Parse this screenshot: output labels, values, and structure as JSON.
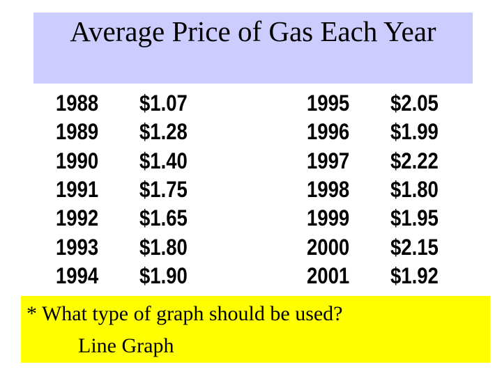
{
  "title": "Average Price of Gas Each Year",
  "table": {
    "rows": [
      [
        "1988",
        "$1.07",
        "1995",
        "$2.05"
      ],
      [
        "1989",
        "$1.28",
        "1996",
        "$1.99"
      ],
      [
        "1990",
        "$1.40",
        "1997",
        "$2.22"
      ],
      [
        "1991",
        "$1.75",
        "1998",
        "$1.80"
      ],
      [
        "1992",
        "$1.65",
        "1999",
        "$1.95"
      ],
      [
        "1993",
        "$1.80",
        "2000",
        "$2.15"
      ],
      [
        "1994",
        "$1.90",
        "2001",
        "$1.92"
      ]
    ]
  },
  "note": {
    "question": "* What type of graph should be used?",
    "answer": "Line Graph"
  }
}
